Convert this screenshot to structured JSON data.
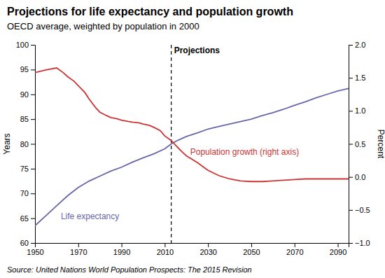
{
  "chart_data": {
    "type": "line",
    "title": "Projections for life expectancy and population growth",
    "subtitle": "OECD average, weighted by population in 2000",
    "source": "Source: United Nations World Population Prospects: The 2015 Revision",
    "xlabel": null,
    "ylabel": "Years",
    "y2label": "Percent",
    "xlim": [
      1950,
      2095
    ],
    "xticks": [
      1950,
      1970,
      1990,
      2010,
      2030,
      2050,
      2070,
      2090
    ],
    "ylim": [
      60,
      100
    ],
    "yticks": [
      60,
      65,
      70,
      75,
      80,
      85,
      90,
      95,
      100
    ],
    "y2lim": [
      -1,
      2
    ],
    "y2ticks": [
      {
        "value": -1,
        "label": "−1.0"
      },
      {
        "value": -0.5,
        "label": "−0.5"
      },
      {
        "value": 0,
        "label": "0.0"
      },
      0.5,
      {
        "value": 1,
        "label": "1.0"
      },
      1.5,
      {
        "value": 2,
        "label": "2.0"
      }
    ],
    "grid": false,
    "annotations": [
      {
        "text": "Projections",
        "x": 2013
      }
    ],
    "series": [
      {
        "name": "Life expectancy",
        "color": "#6666aa",
        "x": [
          1950,
          1955,
          1960,
          1965,
          1970,
          1975,
          1980,
          1985,
          1990,
          1995,
          2000,
          2005,
          2010,
          2013,
          2015,
          2020,
          2025,
          2030,
          2035,
          2040,
          2045,
          2050,
          2055,
          2060,
          2065,
          2070,
          2075,
          2080,
          2085,
          2090,
          2095
        ],
        "values": [
          63.5,
          65.5,
          67.5,
          69.5,
          71.2,
          72.5,
          73.5,
          74.5,
          75.3,
          76.3,
          77.2,
          78.0,
          79.0,
          80.0,
          80.5,
          81.5,
          82.2,
          83.0,
          83.5,
          84.0,
          84.5,
          85.0,
          85.7,
          86.3,
          87.0,
          87.8,
          88.5,
          89.3,
          90.0,
          90.7,
          91.2
        ]
      },
      {
        "name": "Population growth (right axis)",
        "color": "#cc3333",
        "axis": "y2",
        "x": [
          1950,
          1955,
          1960,
          1963,
          1965,
          1968,
          1970,
          1973,
          1975,
          1978,
          1980,
          1983,
          1985,
          1988,
          1990,
          1993,
          1995,
          1998,
          2000,
          2003,
          2005,
          2008,
          2010,
          2013,
          2015,
          2018,
          2020,
          2025,
          2030,
          2035,
          2040,
          2045,
          2050,
          2055,
          2060,
          2065,
          2070,
          2075,
          2080,
          2085,
          2090,
          2095
        ],
        "values": [
          1.58,
          1.62,
          1.65,
          1.58,
          1.52,
          1.45,
          1.38,
          1.28,
          1.18,
          1.05,
          0.98,
          0.93,
          0.9,
          0.88,
          0.86,
          0.84,
          0.83,
          0.82,
          0.8,
          0.78,
          0.75,
          0.7,
          0.62,
          0.55,
          0.48,
          0.38,
          0.32,
          0.22,
          0.1,
          0.02,
          -0.03,
          -0.06,
          -0.07,
          -0.07,
          -0.06,
          -0.05,
          -0.04,
          -0.03,
          -0.03,
          -0.03,
          -0.03,
          -0.03
        ]
      }
    ]
  }
}
